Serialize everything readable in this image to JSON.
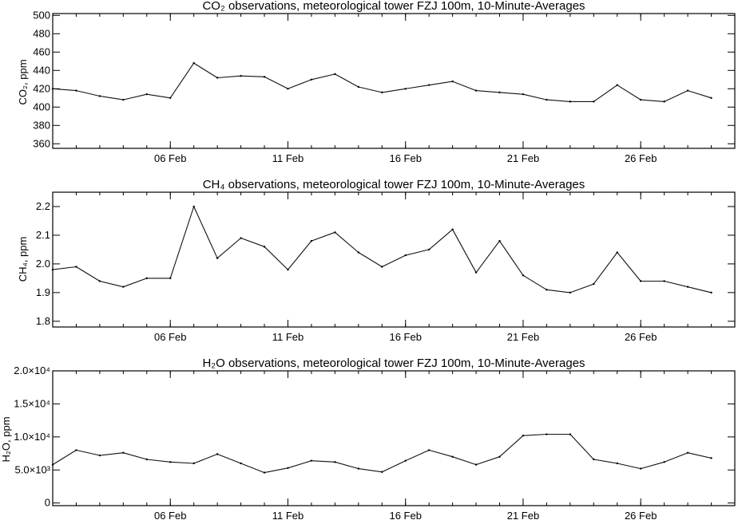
{
  "chart_data": [
    {
      "type": "line",
      "title": "CO₂ observations, meteorological tower FZJ 100m, 10-Minute-Averages",
      "ylabel": "CO₂, ppm",
      "x_dates": [
        "2024-02-01",
        "2024-02-02",
        "2024-02-03",
        "2024-02-04",
        "2024-02-05",
        "2024-02-06",
        "2024-02-07",
        "2024-02-08",
        "2024-02-09",
        "2024-02-10",
        "2024-02-11",
        "2024-02-12",
        "2024-02-13",
        "2024-02-14",
        "2024-02-15",
        "2024-02-16",
        "2024-02-17",
        "2024-02-18",
        "2024-02-19",
        "2024-02-20",
        "2024-02-21",
        "2024-02-22",
        "2024-02-23",
        "2024-02-24",
        "2024-02-25",
        "2024-02-26",
        "2024-02-27",
        "2024-02-28",
        "2024-02-29"
      ],
      "values": [
        420,
        418,
        412,
        408,
        414,
        410,
        448,
        432,
        434,
        433,
        420,
        430,
        436,
        422,
        416,
        420,
        424,
        428,
        418,
        416,
        414,
        408,
        406,
        406,
        424,
        408,
        406,
        418,
        410
      ],
      "xlim": [
        "2024-02-01",
        "2024-03-01"
      ],
      "ylim": [
        355,
        502
      ],
      "yticks": [
        360,
        380,
        400,
        420,
        440,
        460,
        480,
        500
      ],
      "ytick_labels": [
        "360",
        "380",
        "400",
        "420",
        "440",
        "460",
        "480",
        "500"
      ]
    },
    {
      "type": "line",
      "title": "CH₄ observations, meteorological tower FZJ 100m, 10-Minute-Averages",
      "ylabel": "CH₄, ppm",
      "x_dates": [
        "2024-02-01",
        "2024-02-02",
        "2024-02-03",
        "2024-02-04",
        "2024-02-05",
        "2024-02-06",
        "2024-02-07",
        "2024-02-08",
        "2024-02-09",
        "2024-02-10",
        "2024-02-11",
        "2024-02-12",
        "2024-02-13",
        "2024-02-14",
        "2024-02-15",
        "2024-02-16",
        "2024-02-17",
        "2024-02-18",
        "2024-02-19",
        "2024-02-20",
        "2024-02-21",
        "2024-02-22",
        "2024-02-23",
        "2024-02-24",
        "2024-02-25",
        "2024-02-26",
        "2024-02-27",
        "2024-02-28",
        "2024-02-29"
      ],
      "values": [
        1.98,
        1.99,
        1.94,
        1.92,
        1.95,
        1.95,
        2.2,
        2.02,
        2.09,
        2.06,
        1.98,
        2.08,
        2.11,
        2.04,
        1.99,
        2.03,
        2.05,
        2.12,
        1.97,
        2.08,
        1.96,
        1.91,
        1.9,
        1.93,
        2.04,
        1.94,
        1.94,
        1.92,
        1.9
      ],
      "xlim": [
        "2024-02-01",
        "2024-03-01"
      ],
      "ylim": [
        1.78,
        2.25
      ],
      "yticks": [
        1.8,
        1.9,
        2.0,
        2.1,
        2.2
      ],
      "ytick_labels": [
        "1.8",
        "1.9",
        "2.0",
        "2.1",
        "2.2"
      ]
    },
    {
      "type": "line",
      "title": "H₂O observations, meteorological tower FZJ 100m, 10-Minute-Averages",
      "ylabel": "H₂O, ppm",
      "x_dates": [
        "2024-02-01",
        "2024-02-02",
        "2024-02-03",
        "2024-02-04",
        "2024-02-05",
        "2024-02-06",
        "2024-02-07",
        "2024-02-08",
        "2024-02-09",
        "2024-02-10",
        "2024-02-11",
        "2024-02-12",
        "2024-02-13",
        "2024-02-14",
        "2024-02-15",
        "2024-02-16",
        "2024-02-17",
        "2024-02-18",
        "2024-02-19",
        "2024-02-20",
        "2024-02-21",
        "2024-02-22",
        "2024-02-23",
        "2024-02-24",
        "2024-02-25",
        "2024-02-26",
        "2024-02-27",
        "2024-02-28",
        "2024-02-29"
      ],
      "values": [
        5800,
        8000,
        7200,
        7600,
        6600,
        6200,
        6000,
        7400,
        6000,
        4600,
        5300,
        6400,
        6200,
        5200,
        4700,
        6400,
        8000,
        7000,
        5800,
        7000,
        10200,
        10400,
        10400,
        6600,
        6000,
        5200,
        6200,
        7600,
        6800
      ],
      "xlim": [
        "2024-02-01",
        "2024-03-01"
      ],
      "ylim": [
        -400,
        20000
      ],
      "yticks": [
        0,
        5000,
        10000,
        15000,
        20000
      ],
      "ytick_labels": [
        "0",
        "5.0×10³",
        "1.0×10⁴",
        "1.5×10⁴",
        "2.0×10⁴"
      ]
    }
  ],
  "shared": {
    "xtick_dates": [
      "2024-02-06",
      "2024-02-11",
      "2024-02-16",
      "2024-02-21",
      "2024-02-26"
    ],
    "xtick_labels": [
      "06 Feb",
      "11 Feb",
      "16 Feb",
      "21 Feb",
      "26 Feb"
    ]
  }
}
